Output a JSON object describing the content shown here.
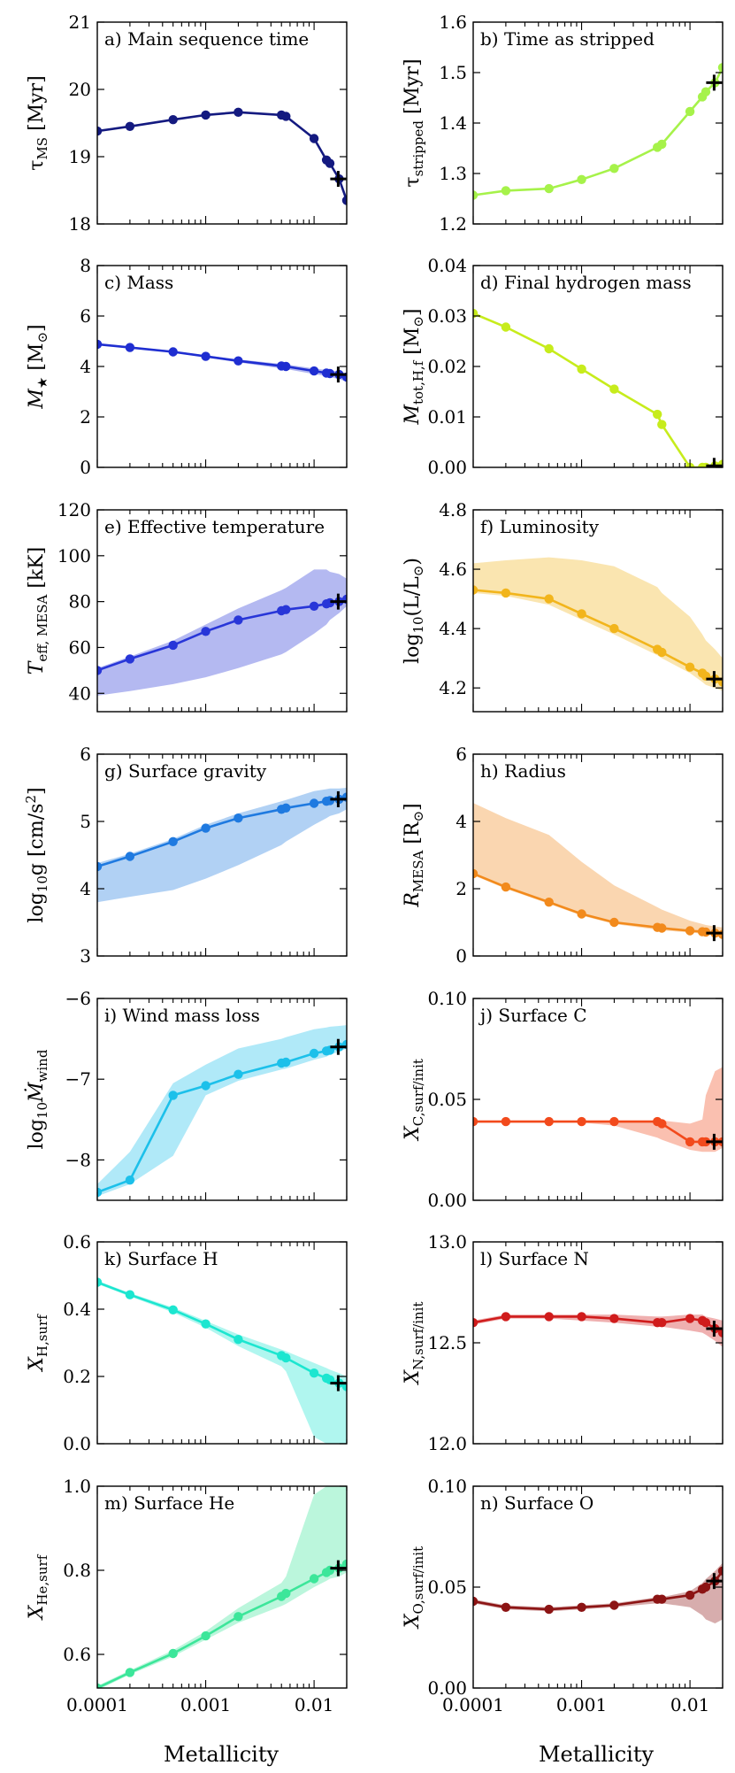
{
  "figure": {
    "xlabel": "Metallicity",
    "x_ticks": [
      0.0001,
      0.001,
      0.01
    ],
    "x_tick_labels": [
      "0.0001",
      "0.001",
      "0.01"
    ],
    "x_scale": "log",
    "xlim": [
      0.0001,
      0.02
    ]
  },
  "chart_data": [
    {
      "id": "a",
      "type": "line",
      "title": "a) Main sequence time",
      "ylabel": "τ_MS [Myr]",
      "ylim": [
        18,
        21
      ],
      "yticks": [
        18,
        19,
        20,
        21
      ],
      "color": "#141a80",
      "x": [
        0.0001,
        0.0002,
        0.0005,
        0.001,
        0.002,
        0.005,
        0.0055,
        0.01,
        0.013,
        0.014,
        0.017,
        0.02
      ],
      "y": [
        19.38,
        19.45,
        19.55,
        19.62,
        19.66,
        19.62,
        19.6,
        19.27,
        18.95,
        18.9,
        18.67,
        18.35
      ],
      "band": null,
      "marker": {
        "x": 0.0167,
        "y": 18.67
      }
    },
    {
      "id": "b",
      "type": "line",
      "title": "b) Time as stripped",
      "ylabel": "τ_stripped [Myr]",
      "ylim": [
        1.2,
        1.6
      ],
      "yticks": [
        1.2,
        1.3,
        1.4,
        1.5,
        1.6
      ],
      "color": "#a6f24a",
      "x": [
        0.0001,
        0.0002,
        0.0005,
        0.001,
        0.002,
        0.005,
        0.0055,
        0.01,
        0.013,
        0.014,
        0.017,
        0.02
      ],
      "y": [
        1.257,
        1.266,
        1.27,
        1.288,
        1.31,
        1.352,
        1.358,
        1.423,
        1.452,
        1.462,
        1.48,
        1.51
      ],
      "band": null,
      "marker": {
        "x": 0.0167,
        "y": 1.48
      }
    },
    {
      "id": "c",
      "type": "line",
      "title": "c) Mass",
      "ylabel": "M_★ [M_⊙]",
      "ylim": [
        0,
        8
      ],
      "yticks": [
        0,
        2,
        4,
        6,
        8
      ],
      "color": "#1f2ed1",
      "x": [
        0.0001,
        0.0002,
        0.0005,
        0.001,
        0.002,
        0.005,
        0.0055,
        0.01,
        0.013,
        0.014,
        0.017,
        0.02
      ],
      "y": [
        4.88,
        4.75,
        4.58,
        4.4,
        4.22,
        4.02,
        4.0,
        3.82,
        3.74,
        3.72,
        3.68,
        3.58
      ],
      "band": {
        "lower": [
          4.85,
          4.72,
          4.55,
          4.36,
          4.16,
          3.92,
          3.9,
          3.7,
          3.62,
          3.58,
          3.5,
          3.4
        ],
        "upper": [
          4.9,
          4.78,
          4.62,
          4.44,
          4.28,
          4.1,
          4.08,
          3.92,
          3.86,
          3.84,
          3.8,
          3.72
        ]
      },
      "marker": {
        "x": 0.0167,
        "y": 3.68
      }
    },
    {
      "id": "d",
      "type": "line",
      "title": "d) Final hydrogen mass",
      "ylabel": "M_tot,H,f [M_⊙]",
      "ylim": [
        0,
        0.04
      ],
      "yticks": [
        0.0,
        0.01,
        0.02,
        0.03,
        0.04
      ],
      "color": "#c7ec1c",
      "x": [
        0.0001,
        0.0002,
        0.0005,
        0.001,
        0.002,
        0.005,
        0.0055,
        0.01,
        0.013,
        0.014,
        0.017,
        0.02
      ],
      "y": [
        0.0305,
        0.0278,
        0.0235,
        0.0195,
        0.0155,
        0.0105,
        0.0085,
        0.0,
        0.0,
        0.0,
        0.0003,
        0.0006
      ],
      "band": null,
      "marker": {
        "x": 0.0167,
        "y": 0.0003
      }
    },
    {
      "id": "e",
      "type": "line",
      "title": "e) Effective temperature",
      "ylabel": "T_eff, MESA [kK]",
      "ylim": [
        32,
        120
      ],
      "yticks": [
        40,
        60,
        80,
        100,
        120
      ],
      "color": "#2836d8",
      "x": [
        0.0001,
        0.0002,
        0.0005,
        0.001,
        0.002,
        0.005,
        0.0055,
        0.01,
        0.013,
        0.014,
        0.017,
        0.02
      ],
      "y": [
        50,
        55,
        61,
        67,
        72,
        76,
        76.5,
        78,
        79,
        79.5,
        80,
        81
      ],
      "band": {
        "lower": [
          39,
          41,
          44,
          47,
          51,
          57,
          58,
          66,
          70,
          72,
          75,
          78
        ],
        "upper": [
          51,
          56,
          63,
          70,
          77,
          85,
          86,
          94,
          94,
          93,
          92,
          90
        ]
      },
      "marker": {
        "x": 0.0167,
        "y": 80
      }
    },
    {
      "id": "f",
      "type": "line",
      "title": "f) Luminosity",
      "ylabel": "log10(L/L_⊙)",
      "ylim": [
        4.12,
        4.8
      ],
      "yticks": [
        4.2,
        4.4,
        4.6,
        4.8
      ],
      "color": "#f2b51c",
      "x": [
        0.0001,
        0.0002,
        0.0005,
        0.001,
        0.002,
        0.005,
        0.0055,
        0.01,
        0.013,
        0.014,
        0.017,
        0.02
      ],
      "y": [
        4.53,
        4.52,
        4.5,
        4.45,
        4.4,
        4.33,
        4.32,
        4.27,
        4.25,
        4.24,
        4.23,
        4.22
      ],
      "band": {
        "lower": [
          4.52,
          4.51,
          4.48,
          4.43,
          4.38,
          4.31,
          4.3,
          4.25,
          4.22,
          4.21,
          4.2,
          4.19
        ],
        "upper": [
          4.62,
          4.63,
          4.64,
          4.63,
          4.61,
          4.54,
          4.52,
          4.44,
          4.38,
          4.36,
          4.33,
          4.3
        ]
      },
      "marker": {
        "x": 0.0167,
        "y": 4.23
      }
    },
    {
      "id": "g",
      "type": "line",
      "title": "g) Surface gravity",
      "ylabel": "log10 g [cm/s²]",
      "ylim": [
        3,
        6
      ],
      "yticks": [
        3,
        4,
        5,
        6
      ],
      "color": "#1f7ae0",
      "x": [
        0.0001,
        0.0002,
        0.0005,
        0.001,
        0.002,
        0.005,
        0.0055,
        0.01,
        0.013,
        0.014,
        0.017,
        0.02
      ],
      "y": [
        4.33,
        4.48,
        4.7,
        4.9,
        5.05,
        5.18,
        5.2,
        5.27,
        5.3,
        5.31,
        5.33,
        5.36
      ],
      "band": {
        "lower": [
          3.8,
          3.88,
          3.98,
          4.15,
          4.35,
          4.65,
          4.7,
          4.95,
          5.05,
          5.08,
          5.12,
          5.18
        ],
        "upper": [
          4.38,
          4.52,
          4.74,
          4.95,
          5.12,
          5.3,
          5.32,
          5.45,
          5.48,
          5.49,
          5.49,
          5.5
        ]
      },
      "marker": {
        "x": 0.0167,
        "y": 5.33
      }
    },
    {
      "id": "h",
      "type": "line",
      "title": "h) Radius",
      "ylabel": "R_MESA [R_⊙]",
      "ylim": [
        0,
        6
      ],
      "yticks": [
        0,
        2,
        4,
        6
      ],
      "color": "#f28a1c",
      "x": [
        0.0001,
        0.0002,
        0.0005,
        0.001,
        0.002,
        0.005,
        0.0055,
        0.01,
        0.013,
        0.014,
        0.017,
        0.02
      ],
      "y": [
        2.45,
        2.05,
        1.6,
        1.25,
        1.0,
        0.85,
        0.83,
        0.75,
        0.72,
        0.71,
        0.68,
        0.64
      ],
      "band": {
        "lower": [
          2.4,
          2.0,
          1.55,
          1.2,
          0.95,
          0.78,
          0.76,
          0.7,
          0.66,
          0.64,
          0.6,
          0.55
        ],
        "upper": [
          4.55,
          4.1,
          3.6,
          2.8,
          2.1,
          1.45,
          1.38,
          1.05,
          0.95,
          0.92,
          0.88,
          0.85
        ]
      },
      "marker": {
        "x": 0.0167,
        "y": 0.68
      }
    },
    {
      "id": "i",
      "type": "line",
      "title": "i) Wind mass loss",
      "ylabel": "log10 Ṁ_wind",
      "ylim": [
        -8.5,
        -6
      ],
      "yticks": [
        -8,
        -7,
        -6
      ],
      "color": "#1cc0ea",
      "x": [
        0.0001,
        0.0002,
        0.0005,
        0.001,
        0.002,
        0.005,
        0.0055,
        0.01,
        0.013,
        0.014,
        0.017,
        0.02
      ],
      "y": [
        -8.4,
        -8.25,
        -7.2,
        -7.08,
        -6.94,
        -6.8,
        -6.79,
        -6.68,
        -6.65,
        -6.64,
        -6.6,
        -6.57
      ],
      "band": {
        "lower": [
          -8.45,
          -8.3,
          -7.95,
          -7.2,
          -7.02,
          -6.88,
          -6.87,
          -6.76,
          -6.72,
          -6.7,
          -6.66,
          -6.62
        ],
        "upper": [
          -8.3,
          -7.9,
          -7.05,
          -6.82,
          -6.62,
          -6.5,
          -6.48,
          -6.38,
          -6.36,
          -6.35,
          -6.34,
          -6.33
        ]
      },
      "marker": {
        "x": 0.0167,
        "y": -6.6
      }
    },
    {
      "id": "j",
      "type": "line",
      "title": "j) Surface C",
      "ylabel": "X_C,surf/init",
      "ylim": [
        0,
        0.1
      ],
      "yticks": [
        0.0,
        0.05,
        0.1
      ],
      "color": "#f24a1c",
      "x": [
        0.0001,
        0.0002,
        0.0005,
        0.001,
        0.002,
        0.005,
        0.0055,
        0.01,
        0.013,
        0.014,
        0.017,
        0.02
      ],
      "y": [
        0.039,
        0.039,
        0.039,
        0.039,
        0.039,
        0.039,
        0.038,
        0.029,
        0.029,
        0.029,
        0.029,
        0.029
      ],
      "band": {
        "lower": [
          0.0385,
          0.0385,
          0.0385,
          0.0385,
          0.037,
          0.031,
          0.03,
          0.025,
          0.024,
          0.024,
          0.024,
          0.026
        ],
        "upper": [
          0.0395,
          0.0395,
          0.0395,
          0.0395,
          0.0395,
          0.0395,
          0.0395,
          0.038,
          0.04,
          0.052,
          0.064,
          0.066
        ]
      },
      "marker": {
        "x": 0.0167,
        "y": 0.029
      }
    },
    {
      "id": "k",
      "type": "line",
      "title": "k) Surface H",
      "ylabel": "X_H,surf",
      "ylim": [
        0,
        0.6
      ],
      "yticks": [
        0.0,
        0.2,
        0.4,
        0.6
      ],
      "color": "#1ce6d0",
      "x": [
        0.0001,
        0.0002,
        0.0005,
        0.001,
        0.002,
        0.005,
        0.0055,
        0.01,
        0.013,
        0.014,
        0.017,
        0.02
      ],
      "y": [
        0.48,
        0.443,
        0.398,
        0.356,
        0.31,
        0.262,
        0.255,
        0.21,
        0.195,
        0.19,
        0.18,
        0.17
      ],
      "band": {
        "lower": [
          0.475,
          0.438,
          0.39,
          0.345,
          0.29,
          0.23,
          0.215,
          0.02,
          0.0,
          0.0,
          0.0,
          0.0
        ],
        "upper": [
          0.485,
          0.448,
          0.405,
          0.365,
          0.325,
          0.28,
          0.275,
          0.24,
          0.225,
          0.22,
          0.21,
          0.2
        ]
      },
      "marker": {
        "x": 0.0167,
        "y": 0.18
      }
    },
    {
      "id": "l",
      "type": "line",
      "title": "l) Surface N",
      "ylabel": "X_N,surf/init",
      "ylim": [
        12.0,
        13.0
      ],
      "yticks": [
        12.0,
        12.5,
        13.0
      ],
      "color": "#d01c1c",
      "x": [
        0.0001,
        0.0002,
        0.0005,
        0.001,
        0.002,
        0.005,
        0.0055,
        0.01,
        0.013,
        0.014,
        0.017,
        0.02
      ],
      "y": [
        12.6,
        12.63,
        12.63,
        12.63,
        12.62,
        12.6,
        12.6,
        12.62,
        12.61,
        12.6,
        12.57,
        12.55
      ],
      "band": {
        "lower": [
          12.59,
          12.62,
          12.62,
          12.61,
          12.6,
          12.58,
          12.58,
          12.56,
          12.55,
          12.54,
          12.51,
          12.48
        ],
        "upper": [
          12.61,
          12.64,
          12.64,
          12.64,
          12.64,
          12.63,
          12.63,
          12.64,
          12.64,
          12.63,
          12.62,
          12.61
        ]
      },
      "marker": {
        "x": 0.0167,
        "y": 12.57
      }
    },
    {
      "id": "m",
      "type": "line",
      "title": "m) Surface He",
      "ylabel": "X_He,surf",
      "ylim": [
        0.52,
        1.0
      ],
      "yticks": [
        0.6,
        0.8,
        1.0
      ],
      "color": "#3ce69a",
      "x": [
        0.0001,
        0.0002,
        0.0005,
        0.001,
        0.002,
        0.005,
        0.0055,
        0.01,
        0.013,
        0.014,
        0.017,
        0.02
      ],
      "y": [
        0.52,
        0.557,
        0.602,
        0.644,
        0.69,
        0.738,
        0.745,
        0.78,
        0.795,
        0.8,
        0.805,
        0.815
      ],
      "band": {
        "lower": [
          0.515,
          0.552,
          0.595,
          0.635,
          0.675,
          0.715,
          0.72,
          0.76,
          0.775,
          0.78,
          0.785,
          0.795
        ],
        "upper": [
          0.525,
          0.562,
          0.61,
          0.655,
          0.71,
          0.77,
          0.785,
          0.98,
          1.0,
          1.0,
          1.0,
          1.0
        ]
      },
      "marker": {
        "x": 0.0167,
        "y": 0.805
      }
    },
    {
      "id": "n",
      "type": "line",
      "title": "n) Surface O",
      "ylabel": "X_O,surf/init",
      "ylim": [
        0,
        0.1
      ],
      "yticks": [
        0.0,
        0.05,
        0.1
      ],
      "color": "#8c1414",
      "x": [
        0.0001,
        0.0002,
        0.0005,
        0.001,
        0.002,
        0.005,
        0.0055,
        0.01,
        0.013,
        0.014,
        0.017,
        0.02
      ],
      "y": [
        0.043,
        0.04,
        0.039,
        0.04,
        0.041,
        0.044,
        0.044,
        0.046,
        0.049,
        0.05,
        0.053,
        0.058
      ],
      "band": {
        "lower": [
          0.042,
          0.039,
          0.038,
          0.039,
          0.04,
          0.042,
          0.042,
          0.04,
          0.036,
          0.034,
          0.032,
          0.034
        ],
        "upper": [
          0.044,
          0.041,
          0.04,
          0.041,
          0.042,
          0.045,
          0.045,
          0.048,
          0.052,
          0.054,
          0.058,
          0.062
        ]
      },
      "marker": {
        "x": 0.0167,
        "y": 0.053
      }
    }
  ]
}
